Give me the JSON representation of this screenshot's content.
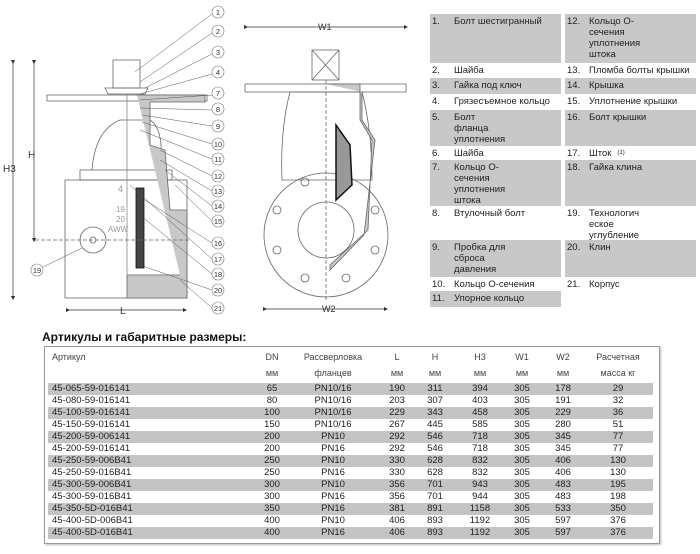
{
  "diagram": {
    "dimensions": {
      "h3": "H3",
      "h": "H",
      "l": "L",
      "w1": "W1",
      "w2": "W2"
    },
    "callouts": [
      "1",
      "2",
      "3",
      "4",
      "7",
      "8",
      "9",
      "10",
      "11",
      "12",
      "13",
      "14",
      "15",
      "16",
      "17",
      "18",
      "20",
      "21"
    ],
    "callout_19": "19",
    "body_marks": [
      "4",
      "19",
      "20",
      "AWW"
    ]
  },
  "parts": {
    "left": [
      {
        "num": "1.",
        "name": "Болт шестигранный"
      },
      {
        "num": "2.",
        "name": "Шайба"
      },
      {
        "num": "3.",
        "name": "Гайка под ключ"
      },
      {
        "num": "4.",
        "name": "Грязесъемное кольцо"
      },
      {
        "num": "5.",
        "name": "Болт\nфланца\nуплотнения"
      },
      {
        "num": "6.",
        "name": "Шайба"
      },
      {
        "num": "7.",
        "name": "Кольцо О-\nсечения\nуплотнения\nштока"
      },
      {
        "num": "8.",
        "name": "Втулочный болт"
      },
      {
        "num": "9.",
        "name": "Пробка для\nсброса\nдавления"
      },
      {
        "num": "10.",
        "name": "Кольцо О-сечения"
      },
      {
        "num": "11.",
        "name": "Упорное кольцо"
      }
    ],
    "right": [
      {
        "num": "12.",
        "name": "Кольцо О-\nсечения\nуплотнения\nштока"
      },
      {
        "num": "13.",
        "name": "Пломба болты крышки"
      },
      {
        "num": "14.",
        "name": "Крышка"
      },
      {
        "num": "15.",
        "name": "Уплотнение крышки"
      },
      {
        "num": "16.",
        "name": "Болт крышки"
      },
      {
        "num": "17.",
        "name": "Шток",
        "note": "(1)"
      },
      {
        "num": "18.",
        "name": "Гайка клина"
      },
      {
        "num": "19.",
        "name": "Технологич\nеское\nуглубление"
      },
      {
        "num": "20.",
        "name": "Клин"
      },
      {
        "num": "21.",
        "name": "Корпус"
      }
    ]
  },
  "table": {
    "title": "Артикулы и габаритные размеры:",
    "headers": [
      {
        "top": "Артикул",
        "bottom": ""
      },
      {
        "top": "DN",
        "bottom": "мм"
      },
      {
        "top": "Рассверловка",
        "bottom": "фланцев"
      },
      {
        "top": "L",
        "bottom": "мм"
      },
      {
        "top": "H",
        "bottom": "мм"
      },
      {
        "top": "H3",
        "bottom": "мм"
      },
      {
        "top": "W1",
        "bottom": "мм"
      },
      {
        "top": "W2",
        "bottom": "мм"
      },
      {
        "top": "Расчетная",
        "bottom": "масса кг"
      }
    ],
    "rows": [
      [
        "45-065-59-016141",
        "65",
        "PN10/16",
        "190",
        "311",
        "394",
        "305",
        "178",
        "29"
      ],
      [
        "45-080-59-016141",
        "80",
        "PN10/16",
        "203",
        "307",
        "403",
        "305",
        "191",
        "32"
      ],
      [
        "45-100-59-016141",
        "100",
        "PN10/16",
        "229",
        "343",
        "458",
        "305",
        "229",
        "36"
      ],
      [
        "45-150-59-016141",
        "150",
        "PN10/16",
        "267",
        "445",
        "585",
        "305",
        "280",
        "51"
      ],
      [
        "45-200-59-006141",
        "200",
        "PN10",
        "292",
        "546",
        "718",
        "305",
        "345",
        "77"
      ],
      [
        "45-200-59-016141",
        "200",
        "PN16",
        "292",
        "546",
        "718",
        "305",
        "345",
        "77"
      ],
      [
        "45-250-59-006B41",
        "250",
        "PN10",
        "330",
        "628",
        "832",
        "305",
        "406",
        "130"
      ],
      [
        "45-250-59-016B41",
        "250",
        "PN16",
        "330",
        "628",
        "832",
        "305",
        "406",
        "130"
      ],
      [
        "45-300-59-006B41",
        "300",
        "PN10",
        "356",
        "701",
        "943",
        "305",
        "483",
        "195"
      ],
      [
        "45-300-59-016B41",
        "300",
        "PN16",
        "356",
        "701",
        "944",
        "305",
        "483",
        "198"
      ],
      [
        "45-350-5D-016B41",
        "350",
        "PN16",
        "381",
        "891",
        "1158",
        "305",
        "533",
        "350"
      ],
      [
        "45-400-5D-006B41",
        "400",
        "PN10",
        "406",
        "893",
        "1192",
        "305",
        "597",
        "376"
      ],
      [
        "45-400-5D-016B41",
        "400",
        "PN16",
        "406",
        "893",
        "1192",
        "305",
        "597",
        "376"
      ]
    ],
    "stripe_color": "#c4c4c4"
  }
}
